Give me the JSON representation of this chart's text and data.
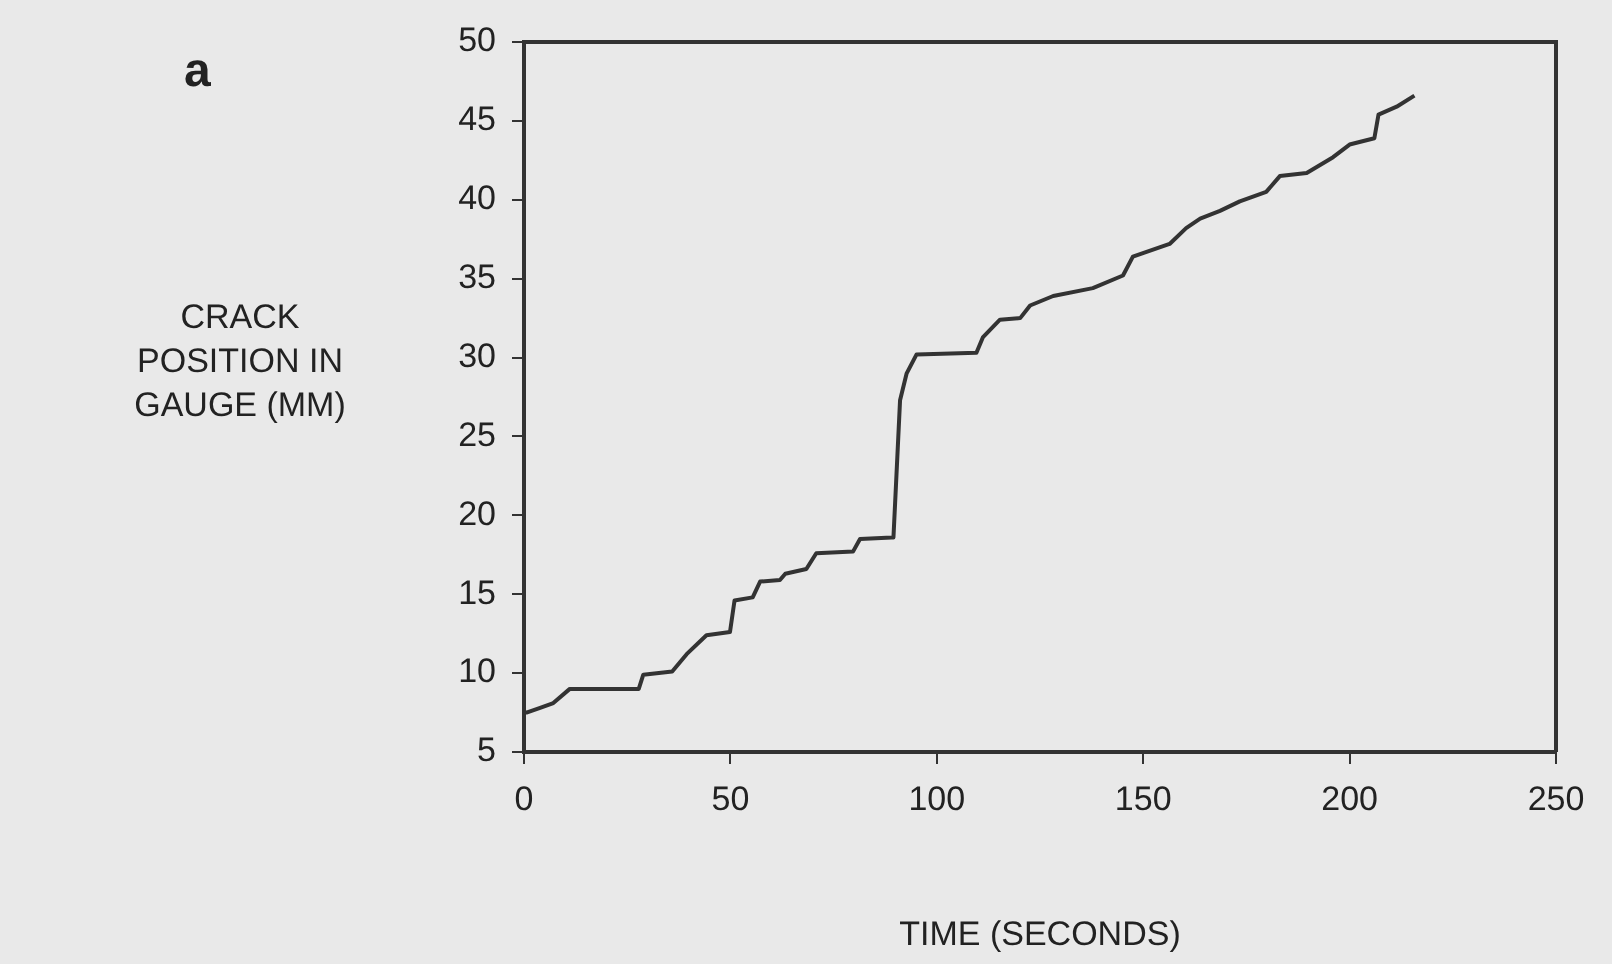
{
  "chart_data": {
    "type": "line",
    "xlabel": "TIME (SECONDS)",
    "ylabel": "CRACK POSITION IN GAUGE (MM)",
    "annotations": [
      "a"
    ],
    "x": [
      0,
      0.6,
      3.9,
      7.1,
      11.1,
      27.8,
      28.9,
      35.9,
      39.4,
      44.2,
      49.9,
      51,
      55.4,
      57.2,
      62,
      63.3,
      68.4,
      70.8,
      79.7,
      81.4,
      89.1,
      89.5,
      91.1,
      92.7,
      95.1,
      109.6,
      111.2,
      115.3,
      120.2,
      122.6,
      128.2,
      137.8,
      145.1,
      147.5,
      156.4,
      160.4,
      163.8,
      168.6,
      173.4,
      179.8,
      183.1,
      189.6,
      196,
      200,
      206,
      207,
      211.4,
      215.7
    ],
    "series": [
      {
        "color": "#333333",
        "values": [
          7.5,
          7.5,
          7.8,
          8.1,
          9.0,
          9.0,
          9.9,
          10.1,
          11.2,
          12.4,
          12.6,
          14.6,
          14.8,
          15.8,
          15.9,
          16.3,
          16.6,
          17.6,
          17.7,
          18.5,
          18.6,
          18.6,
          27.3,
          29.0,
          30.2,
          30.3,
          31.3,
          32.4,
          32.5,
          33.3,
          33.9,
          34.4,
          35.2,
          36.4,
          37.2,
          38.2,
          38.8,
          39.3,
          39.9,
          40.5,
          41.5,
          41.7,
          42.7,
          43.5,
          43.9,
          45.4,
          45.9,
          46.6
        ]
      }
    ],
    "xlim": [
      0,
      250
    ],
    "xticks": [
      0,
      50,
      100,
      150,
      200,
      250
    ],
    "ylim": [
      5,
      50
    ],
    "yticks": [
      5,
      10,
      15,
      20,
      25,
      30,
      35,
      40,
      45,
      50
    ],
    "grid": false,
    "legend": false,
    "marker": "none",
    "line_style": "solid"
  }
}
